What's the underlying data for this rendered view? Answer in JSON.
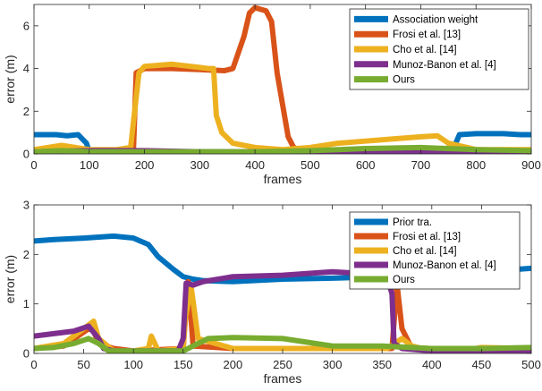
{
  "chart_data": [
    {
      "type": "line",
      "xlabel": "frames",
      "ylabel": "error (m)",
      "xlim": [
        0,
        900
      ],
      "ylim": [
        0,
        7
      ],
      "xticks": [
        0,
        100,
        200,
        300,
        400,
        500,
        600,
        700,
        800,
        900
      ],
      "yticks": [
        0,
        2,
        4,
        6
      ],
      "grid": false,
      "legend_position": "top-right",
      "series": [
        {
          "name": "Association weight",
          "color": "#0072bd",
          "x": [
            0,
            20,
            40,
            60,
            80,
            95,
            100,
            150,
            200,
            300,
            400,
            500,
            600,
            700,
            760,
            770,
            800,
            850,
            880,
            900
          ],
          "y": [
            0.9,
            0.9,
            0.9,
            0.85,
            0.9,
            0.5,
            0.1,
            0.15,
            0.1,
            0.1,
            0.1,
            0.05,
            0.05,
            0.1,
            0.3,
            0.9,
            0.95,
            0.95,
            0.9,
            0.9
          ]
        },
        {
          "name": "Frosi et al. [13]",
          "color": "#d95319",
          "x": [
            0,
            100,
            180,
            185,
            200,
            250,
            300,
            345,
            360,
            380,
            390,
            400,
            420,
            430,
            440,
            460,
            470,
            480,
            500,
            600,
            700,
            800,
            900
          ],
          "y": [
            0.2,
            0.15,
            0.2,
            3.8,
            4.0,
            4.0,
            3.95,
            3.9,
            4.0,
            5.5,
            6.6,
            6.85,
            6.7,
            6.2,
            3.8,
            0.8,
            0.3,
            0.2,
            0.15,
            0.1,
            0.1,
            0.1,
            0.1
          ]
        },
        {
          "name": "Cho et al. [14]",
          "color": "#edb120",
          "x": [
            0,
            50,
            100,
            150,
            175,
            180,
            190,
            200,
            250,
            300,
            315,
            325,
            330,
            340,
            360,
            400,
            450,
            500,
            550,
            600,
            650,
            700,
            730,
            750,
            800,
            900
          ],
          "y": [
            0.2,
            0.4,
            0.2,
            0.2,
            0.3,
            1.5,
            3.8,
            4.1,
            4.2,
            4.05,
            4.0,
            4.0,
            1.8,
            1.0,
            0.5,
            0.3,
            0.2,
            0.3,
            0.5,
            0.6,
            0.7,
            0.8,
            0.85,
            0.5,
            0.2,
            0.2
          ]
        },
        {
          "name": "Munoz-Banon et al. [4]",
          "color": "#7e2f8e",
          "x": [
            0,
            100,
            200,
            300,
            400,
            500,
            600,
            700,
            800,
            900
          ],
          "y": [
            0.1,
            0.15,
            0.15,
            0.1,
            0.1,
            0.05,
            0.05,
            0.1,
            0.1,
            0.1
          ]
        },
        {
          "name": "Ours",
          "color": "#77ac30",
          "x": [
            0,
            50,
            100,
            200,
            300,
            400,
            500,
            600,
            700,
            800,
            900
          ],
          "y": [
            0.1,
            0.15,
            0.1,
            0.1,
            0.1,
            0.1,
            0.15,
            0.25,
            0.3,
            0.2,
            0.15
          ]
        }
      ]
    },
    {
      "type": "line",
      "xlabel": "frames",
      "ylabel": "error (m)",
      "xlim": [
        0,
        500
      ],
      "ylim": [
        0,
        3
      ],
      "xticks": [
        0,
        50,
        100,
        150,
        200,
        250,
        300,
        350,
        400,
        450,
        500
      ],
      "yticks": [
        0,
        1,
        2,
        3
      ],
      "grid": false,
      "legend_position": "top-right",
      "series": [
        {
          "name": "Prior tra.",
          "color": "#0072bd",
          "x": [
            0,
            20,
            50,
            80,
            100,
            115,
            125,
            140,
            150,
            160,
            170,
            200,
            250,
            300,
            350,
            400,
            450,
            500
          ],
          "y": [
            2.27,
            2.3,
            2.33,
            2.37,
            2.33,
            2.2,
            1.95,
            1.7,
            1.55,
            1.5,
            1.47,
            1.45,
            1.5,
            1.52,
            1.55,
            1.6,
            1.65,
            1.72
          ]
        },
        {
          "name": "Frosi et al. [13]",
          "color": "#d95319",
          "x": [
            0,
            30,
            55,
            60,
            65,
            80,
            100,
            150,
            155,
            160,
            200,
            300,
            360,
            365,
            370,
            380,
            400,
            450,
            500
          ],
          "y": [
            0.1,
            0.15,
            0.5,
            0.45,
            0.2,
            0.1,
            0.05,
            0.1,
            1.45,
            0.15,
            0.1,
            0.1,
            0.1,
            1.4,
            0.5,
            0.1,
            0.05,
            0.05,
            0.05
          ]
        },
        {
          "name": "Cho et al. [14]",
          "color": "#edb120",
          "x": [
            0,
            30,
            50,
            60,
            65,
            80,
            100,
            115,
            118,
            125,
            150,
            152,
            158,
            165,
            200,
            300,
            355,
            370,
            380,
            400,
            430,
            450,
            500
          ],
          "y": [
            0.1,
            0.2,
            0.5,
            0.65,
            0.3,
            0.05,
            0.05,
            0.1,
            0.35,
            0.05,
            0.1,
            0.7,
            1.35,
            0.3,
            0.1,
            0.1,
            0.1,
            0.3,
            0.15,
            0.05,
            0.05,
            0.12,
            0.1
          ]
        },
        {
          "name": "Munoz-Banon et al. [4]",
          "color": "#7e2f8e",
          "x": [
            0,
            20,
            40,
            55,
            65,
            70,
            80,
            100,
            145,
            150,
            153,
            160,
            170,
            200,
            250,
            300,
            340,
            355,
            360,
            362,
            370,
            400,
            450,
            500
          ],
          "y": [
            0.35,
            0.4,
            0.45,
            0.55,
            0.3,
            0.1,
            0.05,
            0.05,
            0.05,
            0.3,
            1.42,
            1.38,
            1.45,
            1.55,
            1.58,
            1.65,
            1.6,
            1.55,
            1.2,
            0.2,
            0.1,
            0.05,
            0.05,
            0.05
          ]
        },
        {
          "name": "Ours",
          "color": "#77ac30",
          "x": [
            0,
            20,
            40,
            55,
            65,
            75,
            100,
            150,
            175,
            200,
            250,
            300,
            350,
            400,
            450,
            500
          ],
          "y": [
            0.1,
            0.12,
            0.2,
            0.3,
            0.2,
            0.05,
            0.05,
            0.05,
            0.3,
            0.32,
            0.3,
            0.15,
            0.15,
            0.1,
            0.1,
            0.12
          ]
        }
      ]
    }
  ]
}
